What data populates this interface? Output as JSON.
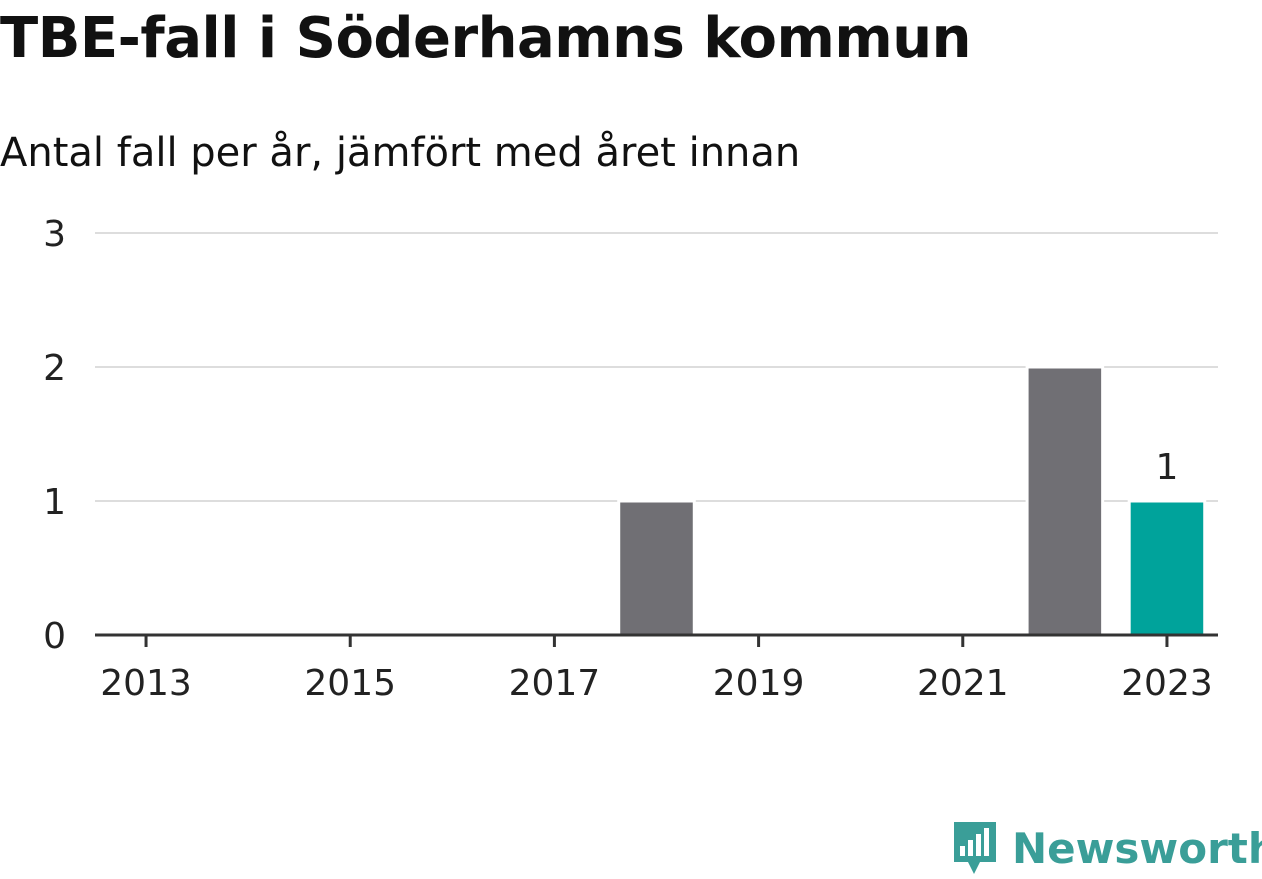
{
  "title": "TBE-fall i Söderhamns kommun",
  "subtitle": "Antal fall per år, jämfört med året innan",
  "brand": {
    "name": "Newsworthy",
    "icon": "newsworthy-logo-icon",
    "color": "#3a9e98"
  },
  "colors": {
    "bar": "#706f74",
    "highlight": "#00a39b",
    "grid": "#dddddd",
    "axis": "#333333"
  },
  "chart_data": {
    "type": "bar",
    "categories": [
      "2013",
      "2014",
      "2015",
      "2016",
      "2017",
      "2018",
      "2019",
      "2020",
      "2021",
      "2022",
      "2023"
    ],
    "values": [
      0,
      0,
      0,
      0,
      0,
      1,
      0,
      0,
      0,
      2,
      1
    ],
    "x_tick_labels": [
      "2013",
      "2015",
      "2017",
      "2019",
      "2021",
      "2023"
    ],
    "y_ticks": [
      0,
      1,
      2,
      3
    ],
    "ylim": [
      0,
      3
    ],
    "highlight_category": "2023",
    "data_labels": [
      {
        "category": "2023",
        "text": "1"
      }
    ],
    "grid": true,
    "legend": "none"
  }
}
